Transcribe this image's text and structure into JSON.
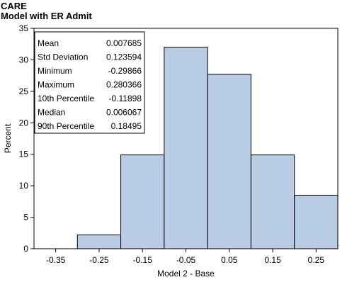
{
  "title": "CARE",
  "subtitle": "Model with ER Admit",
  "chart_data": {
    "type": "bar",
    "subtype": "histogram",
    "xlabel": "Model 2 - Base",
    "ylabel": "Percent",
    "xlim": [
      -0.4,
      0.3
    ],
    "ylim": [
      0,
      35
    ],
    "x_ticks": [
      "-0.35",
      "-0.25",
      "-0.15",
      "-0.05",
      "0.05",
      "0.15",
      "0.25"
    ],
    "x_tick_values": [
      -0.35,
      -0.25,
      -0.15,
      -0.05,
      0.05,
      0.15,
      0.25
    ],
    "y_ticks": [
      0,
      5,
      10,
      15,
      20,
      25,
      30,
      35
    ],
    "bins": [
      {
        "center": -0.35,
        "value": 0
      },
      {
        "center": -0.25,
        "value": 2.2
      },
      {
        "center": -0.15,
        "value": 14.9
      },
      {
        "center": -0.05,
        "value": 32.0
      },
      {
        "center": 0.05,
        "value": 27.7
      },
      {
        "center": 0.15,
        "value": 14.9
      },
      {
        "center": 0.25,
        "value": 8.5
      }
    ],
    "bin_width": 0.1,
    "bar_color": "#b8cce4",
    "grid": false,
    "stats_placement": "top-left",
    "stats": [
      {
        "label": "Mean",
        "value": "0.007685"
      },
      {
        "label": "Std Deviation",
        "value": "0.123594"
      },
      {
        "label": "Minimum",
        "value": "-0.29866"
      },
      {
        "label": "Maximum",
        "value": "0.280366"
      },
      {
        "label": "10th Percentile",
        "value": "-0.11898"
      },
      {
        "label": "Median",
        "value": "0.006067"
      },
      {
        "label": "90th Percentile",
        "value": "0.18495"
      }
    ]
  }
}
